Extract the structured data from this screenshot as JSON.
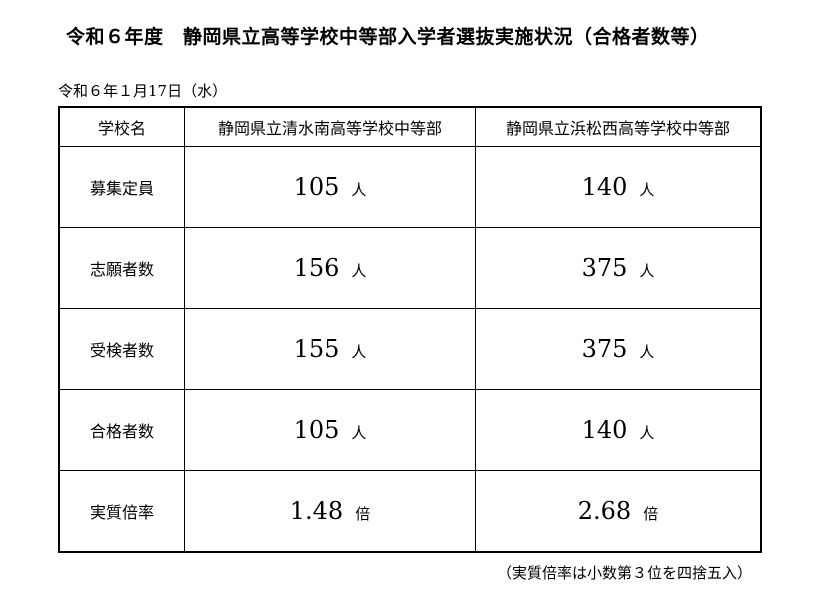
{
  "title": "令和６年度　静岡県立高等学校中等部入学者選抜実施状況（合格者数等）",
  "date": "令和６年１月17日（水）",
  "table": {
    "header": [
      "学校名",
      "静岡県立清水南高等学校中等部",
      "静岡県立浜松西高等学校中等部"
    ],
    "rows": [
      {
        "label": "募集定員",
        "values": [
          "105",
          "140"
        ],
        "unit": "人"
      },
      {
        "label": "志願者数",
        "values": [
          "156",
          "375"
        ],
        "unit": "人"
      },
      {
        "label": "受検者数",
        "values": [
          "155",
          "375"
        ],
        "unit": "人"
      },
      {
        "label": "合格者数",
        "values": [
          "105",
          "140"
        ],
        "unit": "人"
      },
      {
        "label": "実質倍率",
        "values": [
          "1.48",
          "2.68"
        ],
        "unit": "倍"
      }
    ]
  },
  "note": "（実質倍率は小数第３位を四捨五入）"
}
